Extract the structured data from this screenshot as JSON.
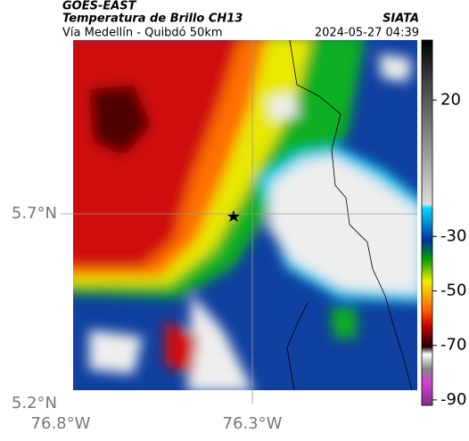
{
  "header": {
    "title": "GOES-EAST",
    "subtitle": "Temperatura de Brillo CH13",
    "route": "Vía Medellín - Quibdó 50km",
    "source": "SIATA",
    "timestamp": "2024-05-27 04:39"
  },
  "map": {
    "lat_ticks": [
      {
        "value": 5.7,
        "label": "5.7°N"
      },
      {
        "value": 5.2,
        "label": "5.2°N"
      }
    ],
    "lon_ticks": [
      {
        "value": -76.8,
        "label": "76.8°W"
      },
      {
        "value": -76.3,
        "label": "76.3°W"
      }
    ],
    "colorbar": {
      "lim": [
        -92,
        42
      ],
      "ticks": [
        20,
        -30,
        -50,
        -70,
        -90
      ]
    }
  }
}
